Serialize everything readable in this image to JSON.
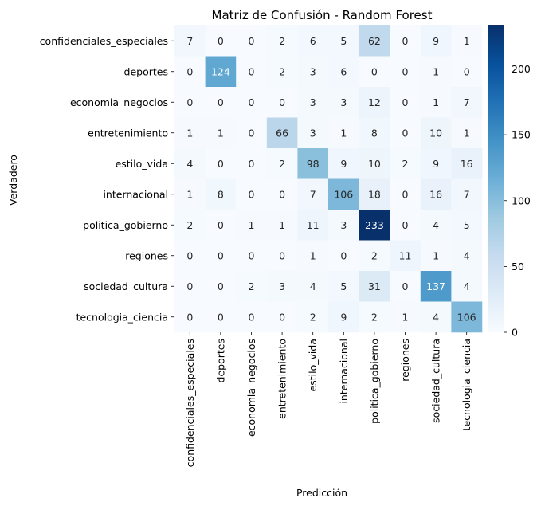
{
  "chart_data": {
    "type": "heatmap",
    "title": "Matriz de Confusión - Random Forest",
    "xlabel": "Predicción",
    "ylabel": "Verdadero",
    "x_categories": [
      "confidenciales_especiales",
      "deportes",
      "economia_negocios",
      "entretenimiento",
      "estilo_vida",
      "internacional",
      "politica_gobierno",
      "regiones",
      "sociedad_cultura",
      "tecnologia_ciencia"
    ],
    "y_categories": [
      "confidenciales_especiales",
      "deportes",
      "economia_negocios",
      "entretenimiento",
      "estilo_vida",
      "internacional",
      "politica_gobierno",
      "regiones",
      "sociedad_cultura",
      "tecnologia_ciencia"
    ],
    "values": [
      [
        7,
        0,
        0,
        2,
        6,
        5,
        62,
        0,
        9,
        1
      ],
      [
        0,
        124,
        0,
        2,
        3,
        6,
        0,
        0,
        1,
        0
      ],
      [
        0,
        0,
        0,
        0,
        3,
        3,
        12,
        0,
        1,
        7
      ],
      [
        1,
        1,
        0,
        66,
        3,
        1,
        8,
        0,
        10,
        1
      ],
      [
        4,
        0,
        0,
        2,
        98,
        9,
        10,
        2,
        9,
        16
      ],
      [
        1,
        8,
        0,
        0,
        7,
        106,
        18,
        0,
        16,
        7
      ],
      [
        2,
        0,
        1,
        1,
        11,
        3,
        233,
        0,
        4,
        5
      ],
      [
        0,
        0,
        0,
        0,
        1,
        0,
        2,
        11,
        1,
        4
      ],
      [
        0,
        0,
        2,
        3,
        4,
        5,
        31,
        0,
        137,
        4
      ],
      [
        0,
        0,
        0,
        0,
        2,
        9,
        2,
        1,
        4,
        106
      ]
    ],
    "colorbar": {
      "range": [
        0,
        233
      ],
      "ticks": [
        0,
        50,
        100,
        150,
        200
      ]
    },
    "colormap": "Blues",
    "colors": {
      "low": "#f7fbff",
      "high": "#08306b"
    }
  }
}
